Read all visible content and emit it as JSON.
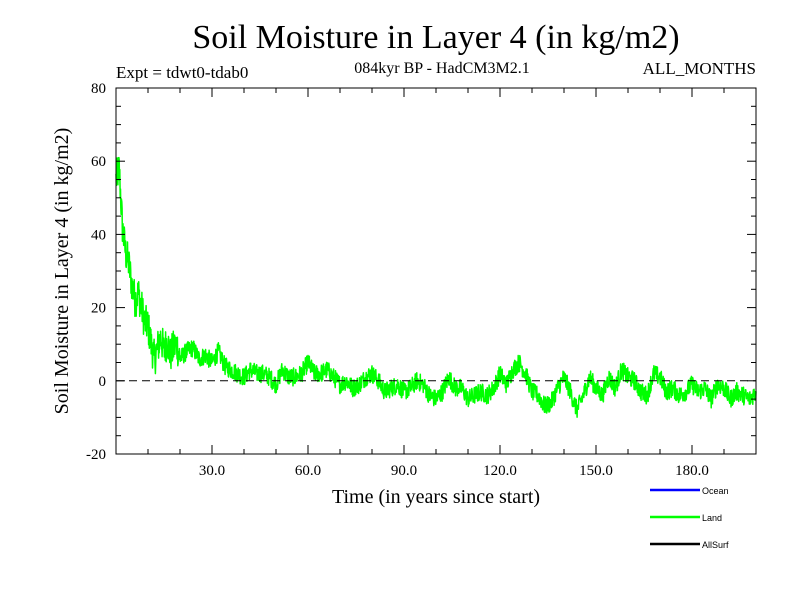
{
  "chart_data": {
    "type": "line",
    "title": "Soil Moisture in Layer 4 (in kg/m2)",
    "subtitle_left": "Expt = tdwt0-tdab0",
    "subtitle_center": "084kyr BP - HadCM3M2.1",
    "subtitle_right": "ALL_MONTHS",
    "xlabel": "Time (in years since start)",
    "ylabel": "Soil Moisture in Layer 4 (in kg/m2)",
    "xlim": [
      0,
      200
    ],
    "ylim": [
      -20,
      80
    ],
    "x_ticks": [
      30,
      60,
      90,
      120,
      150,
      180
    ],
    "x_tick_labels": [
      "30.0",
      "60.0",
      "90.0",
      "120.0",
      "150.0",
      "180.0"
    ],
    "y_ticks": [
      -20,
      0,
      20,
      40,
      60,
      80
    ],
    "y_tick_labels": [
      "-20",
      "0",
      "20",
      "40",
      "60",
      "80"
    ],
    "reference_line": {
      "y": 0,
      "style": "dashed"
    },
    "series": [
      {
        "name": "Land",
        "color": "#00ff00",
        "x": [
          0,
          1,
          2,
          3,
          4,
          5,
          6,
          7,
          8,
          9,
          10,
          11,
          12,
          13,
          14,
          15,
          16,
          17,
          18,
          19,
          20,
          22,
          24,
          26,
          28,
          30,
          32,
          34,
          36,
          38,
          40,
          42,
          44,
          46,
          48,
          50,
          52,
          54,
          56,
          58,
          60,
          62,
          64,
          66,
          68,
          70,
          72,
          74,
          76,
          78,
          80,
          82,
          84,
          86,
          88,
          90,
          92,
          94,
          96,
          98,
          100,
          102,
          104,
          106,
          108,
          110,
          112,
          114,
          116,
          118,
          120,
          122,
          124,
          126,
          128,
          130,
          132,
          134,
          136,
          138,
          140,
          142,
          144,
          146,
          148,
          150,
          152,
          154,
          156,
          158,
          160,
          162,
          164,
          166,
          168,
          170,
          172,
          174,
          176,
          178,
          180,
          182,
          184,
          186,
          188,
          190,
          192,
          194,
          196,
          198,
          200
        ],
        "values": [
          55,
          58,
          42,
          35,
          32,
          26,
          22,
          24,
          20,
          16,
          15,
          10,
          6,
          9,
          12,
          8,
          11,
          7,
          9,
          10,
          6,
          8,
          9,
          6,
          7,
          5,
          8,
          4,
          3,
          2,
          1,
          3,
          2,
          2,
          1,
          -1,
          3,
          1,
          1,
          2,
          5,
          2,
          2,
          3,
          1,
          -1,
          0,
          -2,
          -1,
          1,
          2,
          0,
          -3,
          -2,
          -1,
          -3,
          -2,
          0,
          -1,
          -4,
          -5,
          -3,
          1,
          -2,
          -2,
          -5,
          -4,
          -3,
          -4,
          -2,
          2,
          -1,
          3,
          5,
          2,
          -3,
          -4,
          -7,
          -6,
          -2,
          1,
          -3,
          -8,
          -4,
          1,
          -2,
          -4,
          1,
          -2,
          3,
          1,
          0,
          -3,
          -4,
          2,
          1,
          -3,
          -2,
          -4,
          -3,
          -1,
          -3,
          -2,
          -5,
          -1,
          -2,
          -5,
          -3,
          -4,
          -5,
          -3
        ]
      }
    ],
    "legend": [
      {
        "label": "Ocean",
        "color": "#0000ff"
      },
      {
        "label": "Land",
        "color": "#00ff00"
      },
      {
        "label": "AllSurf",
        "color": "#000000"
      }
    ]
  }
}
